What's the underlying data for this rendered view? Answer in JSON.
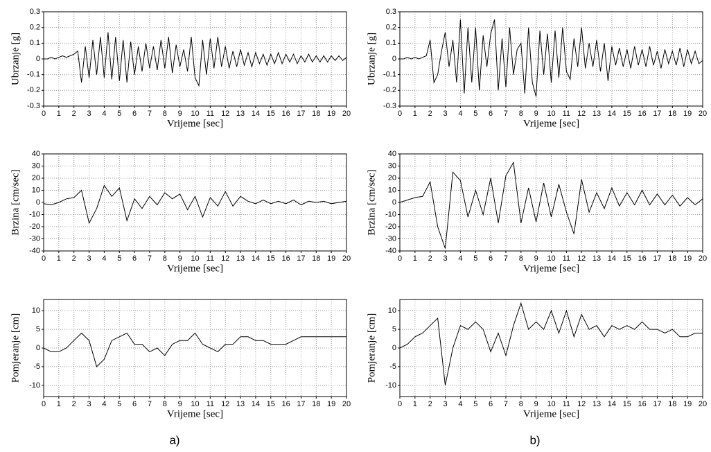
{
  "chart_data": [
    {
      "type": "line",
      "ylabel": "Ubrzanje [g]",
      "xlabel": "Vrijeme [sec]",
      "color": "#000000",
      "grid": true,
      "x": [
        0,
        0.25,
        0.5,
        0.75,
        1,
        1.25,
        1.5,
        1.75,
        2,
        2.25,
        2.5,
        2.75,
        3,
        3.25,
        3.5,
        3.75,
        4,
        4.25,
        4.5,
        4.75,
        5,
        5.25,
        5.5,
        5.75,
        6,
        6.25,
        6.5,
        6.75,
        7,
        7.25,
        7.5,
        7.75,
        8,
        8.25,
        8.5,
        8.75,
        9,
        9.25,
        9.5,
        9.75,
        10,
        10.25,
        10.5,
        10.75,
        11,
        11.25,
        11.5,
        11.75,
        12,
        12.25,
        12.5,
        12.75,
        13,
        13.25,
        13.5,
        13.75,
        14,
        14.25,
        14.5,
        14.75,
        15,
        15.25,
        15.5,
        15.75,
        16,
        16.25,
        16.5,
        16.75,
        17,
        17.25,
        17.5,
        17.75,
        18,
        18.25,
        18.5,
        18.75,
        19,
        19.25,
        19.5,
        19.75,
        20
      ],
      "values": [
        0,
        0,
        0.01,
        0,
        0.01,
        0.02,
        0.01,
        0.02,
        0.03,
        0.05,
        -0.15,
        0.08,
        -0.12,
        0.12,
        -0.1,
        0.14,
        -0.12,
        0.17,
        -0.13,
        0.14,
        -0.14,
        0.12,
        -0.15,
        0.11,
        -0.1,
        0.08,
        -0.08,
        0.1,
        -0.06,
        0.08,
        -0.07,
        0.12,
        -0.06,
        0.14,
        -0.09,
        0.09,
        -0.05,
        0.06,
        -0.08,
        0.14,
        -0.12,
        -0.17,
        0.12,
        -0.1,
        0.13,
        -0.06,
        0.14,
        -0.05,
        0.08,
        -0.06,
        0.05,
        -0.05,
        0.06,
        -0.04,
        0.04,
        -0.05,
        0.04,
        -0.03,
        0.03,
        -0.04,
        0.03,
        -0.03,
        0.04,
        -0.03,
        0.03,
        -0.02,
        0.03,
        -0.03,
        0.02,
        -0.02,
        0.03,
        -0.02,
        0.02,
        -0.02,
        0.02,
        -0.02,
        0.02,
        -0.01,
        0.02,
        -0.01,
        0.01
      ],
      "xlim": [
        0,
        20
      ],
      "xticks": [
        0,
        1,
        2,
        3,
        4,
        5,
        6,
        7,
        8,
        9,
        10,
        11,
        12,
        13,
        14,
        15,
        16,
        17,
        18,
        19,
        20
      ],
      "ylim": [
        -0.3,
        0.3
      ],
      "yticks": [
        -0.3,
        -0.2,
        -0.1,
        0,
        0.1,
        0.2,
        0.3
      ]
    },
    {
      "type": "line",
      "ylabel": "Ubrzanje [g]",
      "xlabel": "Vrijeme [sec]",
      "color": "#000000",
      "grid": true,
      "x": [
        0,
        0.25,
        0.5,
        0.75,
        1,
        1.25,
        1.5,
        1.75,
        2,
        2.25,
        2.5,
        2.75,
        3,
        3.25,
        3.5,
        3.75,
        4,
        4.25,
        4.5,
        4.75,
        5,
        5.25,
        5.5,
        5.75,
        6,
        6.25,
        6.5,
        6.75,
        7,
        7.25,
        7.5,
        7.75,
        8,
        8.25,
        8.5,
        8.75,
        9,
        9.25,
        9.5,
        9.75,
        10,
        10.25,
        10.5,
        10.75,
        11,
        11.25,
        11.5,
        11.75,
        12,
        12.25,
        12.5,
        12.75,
        13,
        13.25,
        13.5,
        13.75,
        14,
        14.25,
        14.5,
        14.75,
        15,
        15.25,
        15.5,
        15.75,
        16,
        16.25,
        16.5,
        16.75,
        17,
        17.25,
        17.5,
        17.75,
        18,
        18.25,
        18.5,
        18.75,
        19,
        19.25,
        19.5,
        19.75,
        20
      ],
      "values": [
        0,
        0,
        0.01,
        0,
        0.01,
        0,
        0.01,
        0.02,
        0.12,
        -0.15,
        -0.1,
        0.05,
        0.17,
        -0.05,
        0.12,
        -0.15,
        0.25,
        -0.22,
        0.2,
        -0.15,
        0.2,
        -0.2,
        0.15,
        -0.05,
        0.16,
        0.25,
        -0.2,
        0.13,
        -0.18,
        0.2,
        -0.1,
        0.06,
        0.1,
        -0.22,
        0.2,
        -0.15,
        -0.24,
        0.18,
        -0.1,
        0.16,
        -0.15,
        0.18,
        -0.12,
        0.2,
        -0.08,
        -0.13,
        0.13,
        -0.05,
        0.2,
        -0.06,
        0.1,
        -0.05,
        0.12,
        -0.08,
        0.1,
        -0.14,
        0.08,
        -0.04,
        0.07,
        -0.05,
        0.06,
        -0.06,
        0.08,
        -0.04,
        0.06,
        -0.05,
        0.08,
        -0.04,
        0.05,
        -0.06,
        0.06,
        -0.03,
        0.05,
        -0.04,
        0.07,
        -0.05,
        0.06,
        -0.03,
        0.05,
        -0.03,
        -0.01
      ],
      "xlim": [
        0,
        20
      ],
      "xticks": [
        0,
        1,
        2,
        3,
        4,
        5,
        6,
        7,
        8,
        9,
        10,
        11,
        12,
        13,
        14,
        15,
        16,
        17,
        18,
        19,
        20
      ],
      "ylim": [
        -0.3,
        0.3
      ],
      "yticks": [
        -0.3,
        -0.2,
        -0.1,
        0,
        0.1,
        0.2,
        0.3
      ]
    },
    {
      "type": "line",
      "ylabel": "Brzina [cm/sec]",
      "xlabel": "Vrijeme [sec]",
      "color": "#000000",
      "grid": true,
      "x": [
        0,
        0.5,
        1,
        1.5,
        2,
        2.5,
        3,
        3.5,
        4,
        4.5,
        5,
        5.5,
        6,
        6.5,
        7,
        7.5,
        8,
        8.5,
        9,
        9.5,
        10,
        10.5,
        11,
        11.5,
        12,
        12.5,
        13,
        13.5,
        14,
        14.5,
        15,
        15.5,
        16,
        16.5,
        17,
        17.5,
        18,
        18.5,
        19,
        19.5,
        20
      ],
      "values": [
        -1,
        -2,
        0,
        3,
        4,
        10,
        -17,
        -5,
        14,
        5,
        12,
        -15,
        3,
        -5,
        5,
        -2,
        8,
        3,
        7,
        -6,
        5,
        -12,
        4,
        -3,
        9,
        -3,
        5,
        1,
        -1,
        2,
        -1,
        1,
        -1,
        2,
        -2,
        1,
        0,
        1,
        -1,
        0,
        1
      ],
      "xlim": [
        0,
        20
      ],
      "xticks": [
        0,
        1,
        2,
        3,
        4,
        5,
        6,
        7,
        8,
        9,
        10,
        11,
        12,
        13,
        14,
        15,
        16,
        17,
        18,
        19,
        20
      ],
      "ylim": [
        -40,
        40
      ],
      "yticks": [
        -40,
        -30,
        -20,
        -10,
        0,
        10,
        20,
        30,
        40
      ]
    },
    {
      "type": "line",
      "ylabel": "Brzina [cm/sec]",
      "xlabel": "Vrijeme [sec]",
      "color": "#000000",
      "grid": true,
      "x": [
        0,
        0.5,
        1,
        1.5,
        2,
        2.5,
        3,
        3.5,
        4,
        4.5,
        5,
        5.5,
        6,
        6.5,
        7,
        7.5,
        8,
        8.5,
        9,
        9.5,
        10,
        10.5,
        11,
        11.5,
        12,
        12.5,
        13,
        13.5,
        14,
        14.5,
        15,
        15.5,
        16,
        16.5,
        17,
        17.5,
        18,
        18.5,
        19,
        19.5,
        20
      ],
      "values": [
        0,
        2,
        4,
        5,
        17,
        -20,
        -38,
        25,
        18,
        -12,
        10,
        -10,
        20,
        -17,
        22,
        33,
        -17,
        12,
        -16,
        16,
        -12,
        15,
        -8,
        -26,
        19,
        -8,
        8,
        -5,
        12,
        -3,
        8,
        -2,
        10,
        -2,
        7,
        -2,
        6,
        -3,
        4,
        -2,
        3
      ],
      "xlim": [
        0,
        20
      ],
      "xticks": [
        0,
        1,
        2,
        3,
        4,
        5,
        6,
        7,
        8,
        9,
        10,
        11,
        12,
        13,
        14,
        15,
        16,
        17,
        18,
        19,
        20
      ],
      "ylim": [
        -40,
        40
      ],
      "yticks": [
        -40,
        -30,
        -20,
        -10,
        0,
        10,
        20,
        30,
        40
      ]
    },
    {
      "type": "line",
      "ylabel": "Pomjeranje [cm]",
      "xlabel": "Vrijeme [sec]",
      "color": "#000000",
      "grid": true,
      "x": [
        0,
        0.5,
        1,
        1.5,
        2,
        2.5,
        3,
        3.5,
        4,
        4.5,
        5,
        5.5,
        6,
        6.5,
        7,
        7.5,
        8,
        8.5,
        9,
        9.5,
        10,
        10.5,
        11,
        11.5,
        12,
        12.5,
        13,
        13.5,
        14,
        14.5,
        15,
        15.5,
        16,
        16.5,
        17,
        17.5,
        18,
        18.5,
        19,
        19.5,
        20
      ],
      "values": [
        0,
        -1,
        -1,
        0,
        2,
        4,
        2,
        -5,
        -3,
        2,
        3,
        4,
        1,
        1,
        -1,
        0,
        -2,
        1,
        2,
        2,
        4,
        1,
        0,
        -1,
        1,
        1,
        3,
        3,
        2,
        2,
        1,
        1,
        1,
        2,
        3,
        3,
        3,
        3,
        3,
        3,
        3
      ],
      "xlim": [
        0,
        20
      ],
      "xticks": [
        0,
        1,
        2,
        3,
        4,
        5,
        6,
        7,
        8,
        9,
        10,
        11,
        12,
        13,
        14,
        15,
        16,
        17,
        18,
        19,
        20
      ],
      "ylim": [
        -13,
        13
      ],
      "yticks": [
        -10,
        -5,
        0,
        5,
        10
      ]
    },
    {
      "type": "line",
      "ylabel": "Pomjeranje [cm]",
      "xlabel": "Vrijeme [sec]",
      "color": "#000000",
      "grid": true,
      "x": [
        0,
        0.5,
        1,
        1.5,
        2,
        2.5,
        3,
        3.5,
        4,
        4.5,
        5,
        5.5,
        6,
        6.5,
        7,
        7.5,
        8,
        8.5,
        9,
        9.5,
        10,
        10.5,
        11,
        11.5,
        12,
        12.5,
        13,
        13.5,
        14,
        14.5,
        15,
        15.5,
        16,
        16.5,
        17,
        17.5,
        18,
        18.5,
        19,
        19.5,
        20
      ],
      "values": [
        0,
        1,
        3,
        4,
        6,
        8,
        -10,
        0,
        6,
        5,
        7,
        5,
        -1,
        4,
        -2,
        6,
        12,
        5,
        7,
        5,
        10,
        4,
        10,
        3,
        9,
        5,
        6,
        3,
        6,
        5,
        6,
        5,
        7,
        5,
        5,
        4,
        5,
        3,
        3,
        4,
        4
      ],
      "xlim": [
        0,
        20
      ],
      "xticks": [
        0,
        1,
        2,
        3,
        4,
        5,
        6,
        7,
        8,
        9,
        10,
        11,
        12,
        13,
        14,
        15,
        16,
        17,
        18,
        19,
        20
      ],
      "ylim": [
        -13,
        13
      ],
      "yticks": [
        -10,
        -5,
        0,
        5,
        10
      ]
    }
  ],
  "captions": [
    "a)",
    "b)"
  ]
}
